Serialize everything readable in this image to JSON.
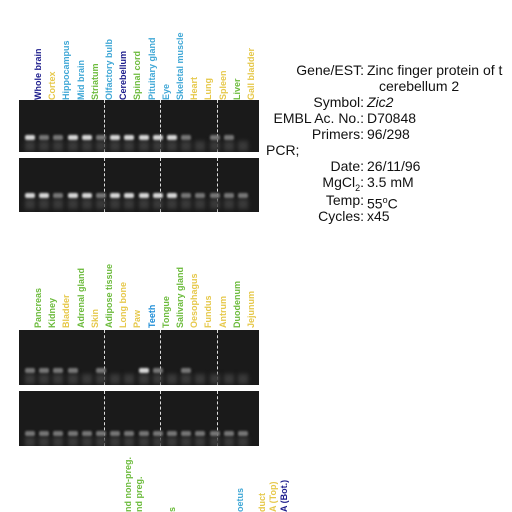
{
  "panel1": {
    "lanes": [
      {
        "label": "Whole brain",
        "color": "#1c1c8c"
      },
      {
        "label": "Cortex",
        "color": "#e6c84a"
      },
      {
        "label": "Hippocampus",
        "color": "#3fa7d6"
      },
      {
        "label": "Mid brain",
        "color": "#3fa7d6"
      },
      {
        "label": "Striatum",
        "color": "#6cbb3c"
      },
      {
        "label": "Olfactory bulb",
        "color": "#3fa7d6"
      },
      {
        "label": "Cerebellum",
        "color": "#1c1c8c"
      },
      {
        "label": "Spinal cord",
        "color": "#6cbb3c"
      },
      {
        "label": "Pituitary gland",
        "color": "#3fa7d6"
      },
      {
        "label": "Eye",
        "color": "#3fa7d6"
      },
      {
        "label": "Skeletal muscle",
        "color": "#3fa7d6"
      },
      {
        "label": "Heart",
        "color": "#e6c84a"
      },
      {
        "label": "Lung",
        "color": "#e6c84a"
      },
      {
        "label": "Spleen",
        "color": "#e6c84a"
      },
      {
        "label": "Liver",
        "color": "#6cbb3c"
      },
      {
        "label": "Gall bladder",
        "color": "#e6c84a"
      }
    ]
  },
  "panel2": {
    "lanes": [
      {
        "label": "Pancreas",
        "color": "#6cbb3c"
      },
      {
        "label": "Kidney",
        "color": "#6cbb3c"
      },
      {
        "label": "Bladder",
        "color": "#e6c84a"
      },
      {
        "label": "Adrenal gland",
        "color": "#6cbb3c"
      },
      {
        "label": "Skin",
        "color": "#e6c84a"
      },
      {
        "label": "Adipose tissue",
        "color": "#6cbb3c"
      },
      {
        "label": "Long bone",
        "color": "#e6c84a"
      },
      {
        "label": "Paw",
        "color": "#e6c84a"
      },
      {
        "label": "Teeth",
        "color": "#1c8cd6"
      },
      {
        "label": "Tongue",
        "color": "#6cbb3c"
      },
      {
        "label": "Salivary gland",
        "color": "#6cbb3c"
      },
      {
        "label": "Oesophagus",
        "color": "#e6c84a"
      },
      {
        "label": "Fundus",
        "color": "#e6c84a"
      },
      {
        "label": "Antrum",
        "color": "#e6c84a"
      },
      {
        "label": "Duodenum",
        "color": "#6cbb3c"
      },
      {
        "label": "Jejunum",
        "color": "#e6c84a"
      }
    ]
  },
  "panel3": {
    "lanes": [
      {
        "label": "",
        "color": "#6cbb3c"
      },
      {
        "label": "",
        "color": "#6cbb3c"
      },
      {
        "label": "",
        "color": "#6cbb3c"
      },
      {
        "label": "",
        "color": "#6cbb3c"
      },
      {
        "label": "",
        "color": "#6cbb3c"
      },
      {
        "label": "",
        "color": "#6cbb3c"
      },
      {
        "label": "",
        "color": "#6cbb3c"
      },
      {
        "label": "",
        "color": "#6cbb3c"
      },
      {
        "label": "nd non-preg.",
        "color": "#6cbb3c"
      },
      {
        "label": "nd preg.",
        "color": "#6cbb3c"
      },
      {
        "label": "",
        "color": "#6cbb3c"
      },
      {
        "label": "",
        "color": "#6cbb3c"
      },
      {
        "label": "s",
        "color": "#6cbb3c"
      },
      {
        "label": "",
        "color": "#6cbb3c"
      },
      {
        "label": "",
        "color": "#6cbb3c"
      },
      {
        "label": "",
        "color": "#6cbb3c"
      },
      {
        "label": "",
        "color": "#6cbb3c"
      },
      {
        "label": "",
        "color": "#6cbb3c"
      },
      {
        "label": "oetus",
        "color": "#3fa7d6"
      },
      {
        "label": "",
        "color": "#6cbb3c"
      },
      {
        "label": "duct",
        "color": "#e6c84a"
      },
      {
        "label": "A (Top)",
        "color": "#e6c84a"
      },
      {
        "label": "A (Bot.)",
        "color": "#1c1c8c"
      }
    ]
  },
  "info": {
    "gene_key": "Gene/EST:",
    "gene_val_1": "Zinc finger protein of t",
    "gene_val_2": "cerebellum 2",
    "symbol_key": "Symbol:",
    "symbol_val": "Zic2",
    "embl_key": "EMBL Ac. No.:",
    "embl_val": "D70848",
    "primers_key": "Primers:",
    "primers_val": "96/298",
    "pcr_key": "PCR;",
    "date_key": "Date:",
    "date_val": "26/11/96",
    "mgcl_key_pre": "MgCl",
    "mgcl_key_sub": "2",
    "mgcl_key_post": ":",
    "mgcl_val": "3.5 mM",
    "temp_key": "Temp:",
    "temp_val_pre": "55",
    "temp_val_sup": "o",
    "temp_val_post": "C",
    "cycles_key": "Cycles:",
    "cycles_val": "x45"
  }
}
